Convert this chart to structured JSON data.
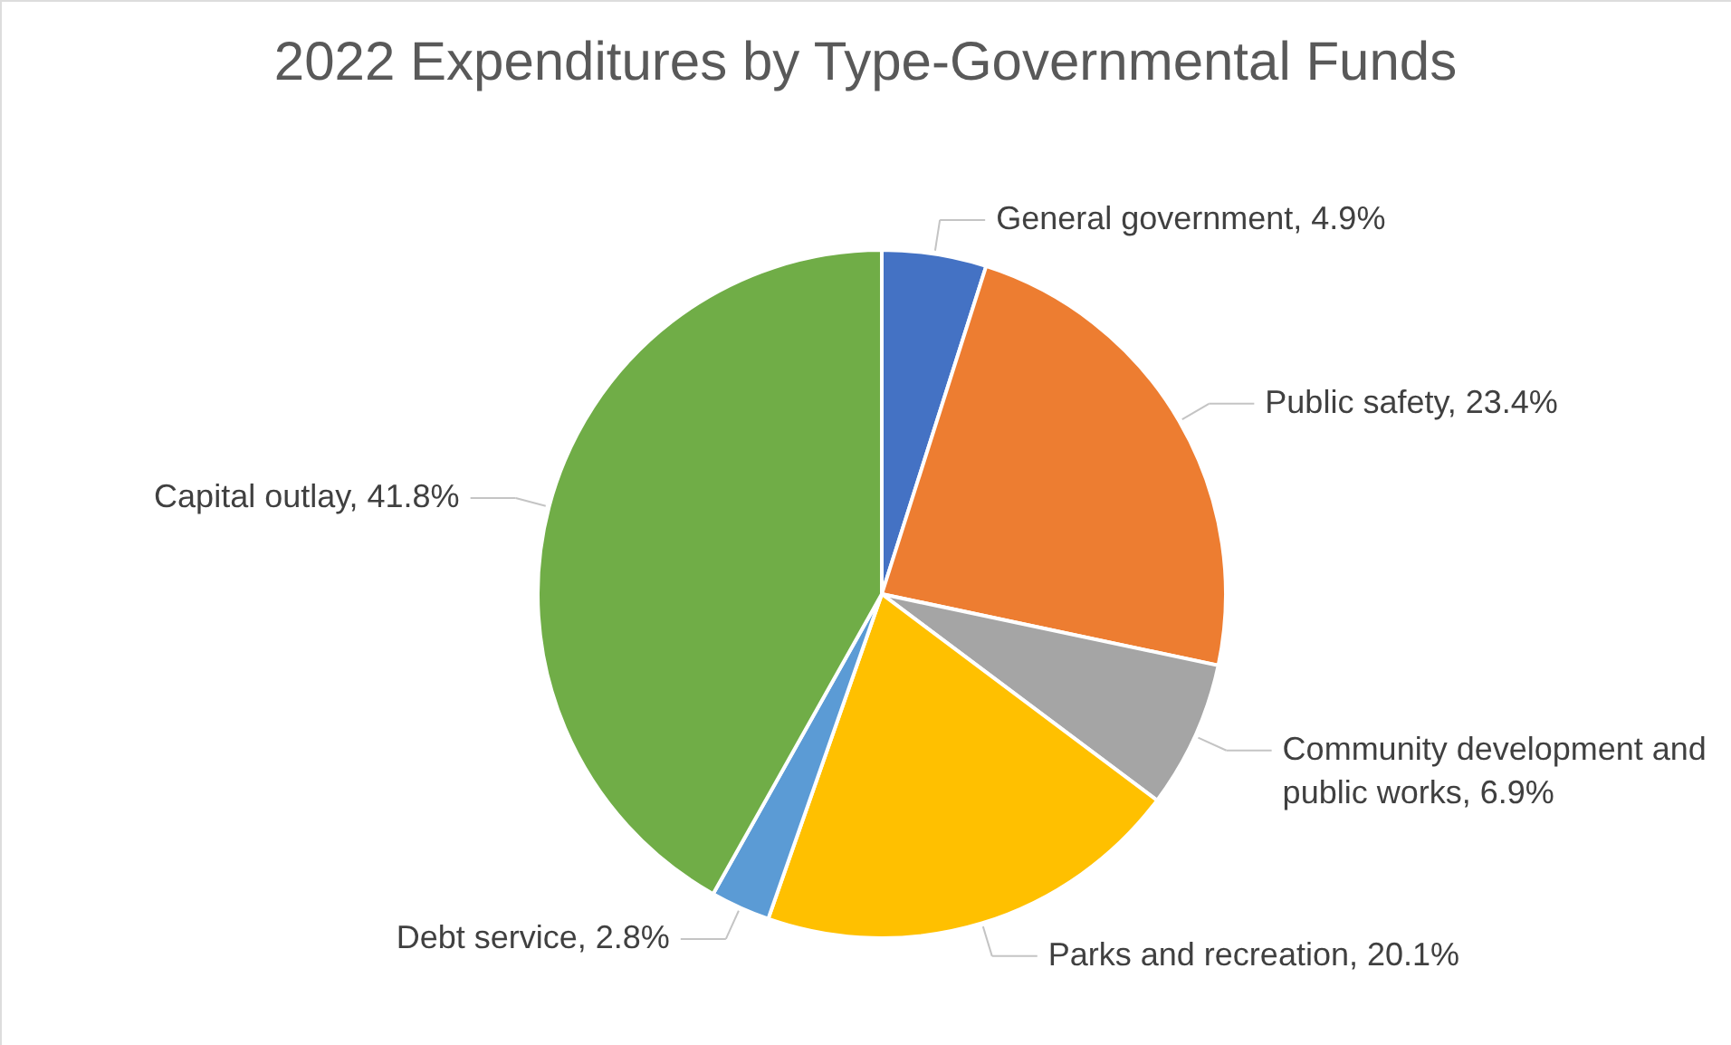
{
  "chart_data": {
    "type": "pie",
    "title": "2022 Expenditures by Type-Governmental Funds",
    "categories": [
      "General government",
      "Public safety",
      "Community development and public works",
      "Parks and recreation",
      "Debt service",
      "Capital outlay"
    ],
    "values": [
      4.9,
      23.4,
      6.9,
      20.1,
      2.8,
      41.8
    ],
    "value_labels": [
      "4.9%",
      "23.4%",
      "6.9%",
      "20.1%",
      "2.8%",
      "41.8%"
    ],
    "colors": [
      "#4472c4",
      "#ed7d31",
      "#a5a5a5",
      "#ffc000",
      "#5b9bd5",
      "#70ad47"
    ],
    "legend": false
  }
}
